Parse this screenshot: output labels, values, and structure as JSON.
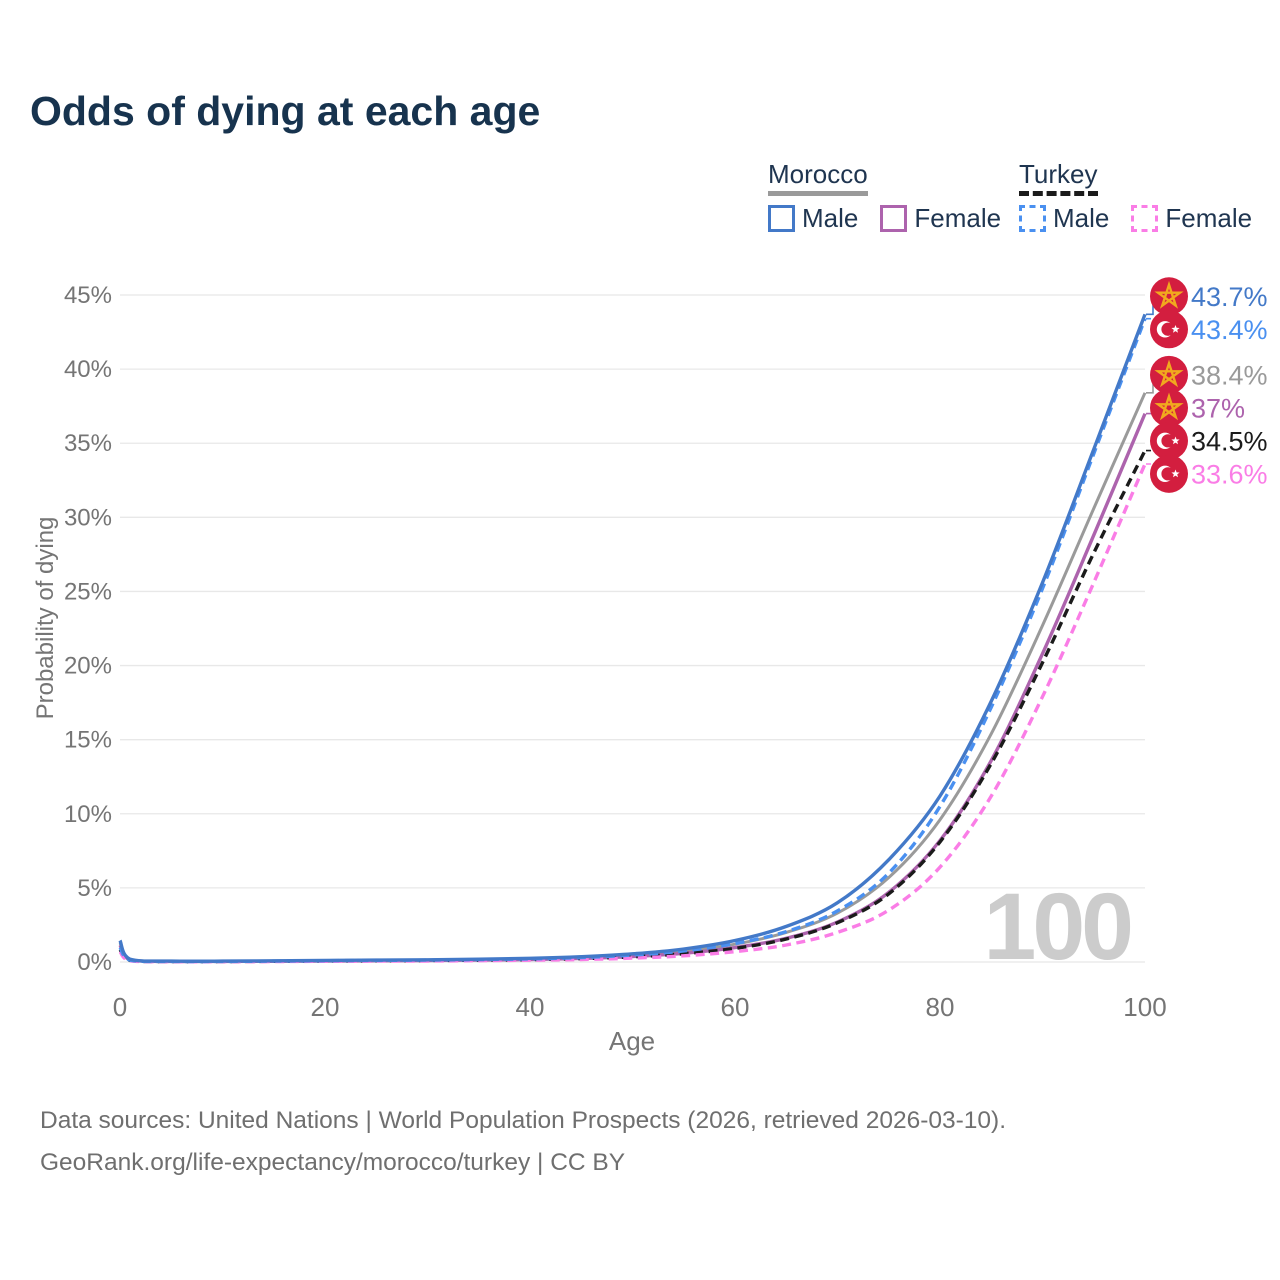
{
  "title": "Odds of dying at each age",
  "watermark": "100",
  "legend": {
    "groups": [
      {
        "title": "Morocco",
        "slug": "morocco",
        "line_style": "solid",
        "line_color": "#9a9a9a",
        "items": [
          {
            "label": "Male",
            "slug": "morocco-male",
            "swatch_color": "#4379c8",
            "swatch_style": "solid"
          },
          {
            "label": "Female",
            "slug": "morocco-female",
            "swatch_color": "#ad63ad",
            "swatch_style": "solid"
          }
        ]
      },
      {
        "title": "Turkey",
        "slug": "turkey",
        "line_style": "dashed",
        "line_color": "#1b1b1b",
        "items": [
          {
            "label": "Male",
            "slug": "turkey-male",
            "swatch_color": "#4a90f0",
            "swatch_style": "dashed"
          },
          {
            "label": "Female",
            "slug": "turkey-female",
            "swatch_color": "#fa7de6",
            "swatch_style": "dashed"
          }
        ]
      }
    ]
  },
  "chart_data": {
    "type": "line",
    "title": "Odds of dying at each age",
    "xlabel": "Age",
    "ylabel": "Probability of dying",
    "xlim": [
      0,
      100
    ],
    "ylim": [
      0,
      45
    ],
    "x_ticks": [
      0,
      20,
      40,
      60,
      80,
      100
    ],
    "y_ticks": [
      0,
      5,
      10,
      15,
      20,
      25,
      30,
      35,
      40,
      45
    ],
    "y_tick_suffix": "%",
    "grid": "horizontal",
    "legend_position": "top-right",
    "series": [
      {
        "name": "Morocco Male",
        "slug": "morocco-male",
        "flag": "morocco",
        "color": "#4379c8",
        "dash": "solid",
        "end_value": 43.7,
        "end_label": "43.7%",
        "points": [
          [
            0,
            1.45
          ],
          [
            1,
            0.18
          ],
          [
            5,
            0.06
          ],
          [
            10,
            0.06
          ],
          [
            15,
            0.08
          ],
          [
            20,
            0.11
          ],
          [
            25,
            0.13
          ],
          [
            30,
            0.15
          ],
          [
            35,
            0.19
          ],
          [
            40,
            0.25
          ],
          [
            45,
            0.36
          ],
          [
            50,
            0.55
          ],
          [
            55,
            0.88
          ],
          [
            60,
            1.45
          ],
          [
            65,
            2.4
          ],
          [
            70,
            4.0
          ],
          [
            75,
            6.9
          ],
          [
            80,
            11.2
          ],
          [
            85,
            17.6
          ],
          [
            90,
            25.6
          ],
          [
            95,
            34.6
          ],
          [
            100,
            43.7
          ]
        ]
      },
      {
        "name": "Turkey Male",
        "slug": "turkey-male",
        "flag": "turkey",
        "color": "#4a90f0",
        "dash": "dashed",
        "end_value": 43.4,
        "end_label": "43.4%",
        "points": [
          [
            0,
            1.0
          ],
          [
            1,
            0.12
          ],
          [
            5,
            0.04
          ],
          [
            10,
            0.04
          ],
          [
            15,
            0.06
          ],
          [
            20,
            0.09
          ],
          [
            25,
            0.11
          ],
          [
            30,
            0.13
          ],
          [
            35,
            0.16
          ],
          [
            40,
            0.21
          ],
          [
            45,
            0.3
          ],
          [
            50,
            0.47
          ],
          [
            55,
            0.75
          ],
          [
            60,
            1.25
          ],
          [
            65,
            2.05
          ],
          [
            70,
            3.45
          ],
          [
            75,
            6.0
          ],
          [
            80,
            10.5
          ],
          [
            85,
            17.2
          ],
          [
            90,
            25.2
          ],
          [
            95,
            34.3
          ],
          [
            100,
            43.4
          ]
        ]
      },
      {
        "name": "Morocco",
        "slug": "morocco-overall",
        "flag": "morocco",
        "color": "#9a9a9a",
        "dash": "solid",
        "end_value": 38.4,
        "end_label": "38.4%",
        "points": [
          [
            0,
            1.3
          ],
          [
            1,
            0.16
          ],
          [
            5,
            0.05
          ],
          [
            10,
            0.05
          ],
          [
            15,
            0.07
          ],
          [
            20,
            0.09
          ],
          [
            25,
            0.11
          ],
          [
            30,
            0.13
          ],
          [
            35,
            0.16
          ],
          [
            40,
            0.21
          ],
          [
            45,
            0.3
          ],
          [
            50,
            0.46
          ],
          [
            55,
            0.73
          ],
          [
            60,
            1.2
          ],
          [
            65,
            2.0
          ],
          [
            70,
            3.3
          ],
          [
            75,
            5.7
          ],
          [
            80,
            9.6
          ],
          [
            85,
            15.4
          ],
          [
            90,
            22.7
          ],
          [
            95,
            30.6
          ],
          [
            100,
            38.4
          ]
        ]
      },
      {
        "name": "Morocco Female",
        "slug": "morocco-female",
        "flag": "morocco",
        "color": "#ad63ad",
        "dash": "solid",
        "end_value": 37,
        "end_label": "37%",
        "points": [
          [
            0,
            1.15
          ],
          [
            1,
            0.14
          ],
          [
            5,
            0.04
          ],
          [
            10,
            0.04
          ],
          [
            15,
            0.05
          ],
          [
            20,
            0.07
          ],
          [
            25,
            0.08
          ],
          [
            30,
            0.1
          ],
          [
            35,
            0.13
          ],
          [
            40,
            0.17
          ],
          [
            45,
            0.24
          ],
          [
            50,
            0.37
          ],
          [
            55,
            0.59
          ],
          [
            60,
            0.97
          ],
          [
            65,
            1.6
          ],
          [
            70,
            2.7
          ],
          [
            75,
            4.7
          ],
          [
            80,
            8.2
          ],
          [
            85,
            13.6
          ],
          [
            90,
            20.8
          ],
          [
            95,
            28.8
          ],
          [
            100,
            37.0
          ]
        ]
      },
      {
        "name": "Turkey",
        "slug": "turkey-overall",
        "flag": "turkey",
        "color": "#1b1b1b",
        "dash": "dashed",
        "end_value": 34.5,
        "end_label": "34.5%",
        "points": [
          [
            0,
            0.85
          ],
          [
            1,
            0.1
          ],
          [
            5,
            0.03
          ],
          [
            10,
            0.03
          ],
          [
            15,
            0.05
          ],
          [
            20,
            0.07
          ],
          [
            25,
            0.08
          ],
          [
            30,
            0.1
          ],
          [
            35,
            0.12
          ],
          [
            40,
            0.16
          ],
          [
            45,
            0.23
          ],
          [
            50,
            0.35
          ],
          [
            55,
            0.56
          ],
          [
            60,
            0.92
          ],
          [
            65,
            1.55
          ],
          [
            70,
            2.65
          ],
          [
            75,
            4.6
          ],
          [
            80,
            8.1
          ],
          [
            85,
            13.4
          ],
          [
            90,
            20.2
          ],
          [
            95,
            27.6
          ],
          [
            100,
            34.5
          ]
        ]
      },
      {
        "name": "Turkey Female",
        "slug": "turkey-female",
        "flag": "turkey",
        "color": "#fa7de6",
        "dash": "dashed",
        "end_value": 33.6,
        "end_label": "33.6%",
        "points": [
          [
            0,
            0.7
          ],
          [
            1,
            0.08
          ],
          [
            5,
            0.02
          ],
          [
            10,
            0.02
          ],
          [
            15,
            0.03
          ],
          [
            20,
            0.05
          ],
          [
            25,
            0.06
          ],
          [
            30,
            0.07
          ],
          [
            35,
            0.09
          ],
          [
            40,
            0.12
          ],
          [
            45,
            0.17
          ],
          [
            50,
            0.26
          ],
          [
            55,
            0.42
          ],
          [
            60,
            0.7
          ],
          [
            65,
            1.15
          ],
          [
            70,
            2.0
          ],
          [
            75,
            3.5
          ],
          [
            80,
            6.4
          ],
          [
            85,
            11.2
          ],
          [
            90,
            17.9
          ],
          [
            95,
            25.6
          ],
          [
            100,
            33.6
          ]
        ]
      }
    ],
    "flag_colors": {
      "flag_red": "#d31e3f",
      "morocco_star": "#f1a91e",
      "turkey_crescent": "#ffffff"
    }
  },
  "footer": {
    "line1": "Data sources: United Nations | World Population Prospects (2026, retrieved 2026-03-10).",
    "line2": "GeoRank.org/life-expectancy/morocco/turkey | CC BY"
  }
}
